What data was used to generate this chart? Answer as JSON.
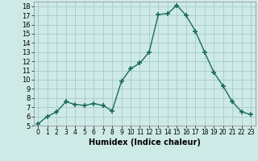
{
  "x": [
    0,
    1,
    2,
    3,
    4,
    5,
    6,
    7,
    8,
    9,
    10,
    11,
    12,
    13,
    14,
    15,
    16,
    17,
    18,
    19,
    20,
    21,
    22,
    23
  ],
  "y": [
    5.2,
    6.0,
    6.5,
    7.6,
    7.3,
    7.2,
    7.4,
    7.2,
    6.6,
    9.8,
    11.2,
    11.8,
    13.0,
    17.1,
    17.2,
    18.1,
    17.0,
    15.3,
    13.0,
    10.8,
    9.3,
    7.6,
    6.5,
    6.2
  ],
  "line_color": "#1a6b5e",
  "marker": "+",
  "marker_size": 4,
  "bg_color": "#ceeae7",
  "grid_color": "#aacfcc",
  "xlabel": "Humidex (Indice chaleur)",
  "ylim": [
    5,
    18.5
  ],
  "xlim": [
    -0.5,
    23.5
  ],
  "yticks": [
    5,
    6,
    7,
    8,
    9,
    10,
    11,
    12,
    13,
    14,
    15,
    16,
    17,
    18
  ],
  "xticks": [
    0,
    1,
    2,
    3,
    4,
    5,
    6,
    7,
    8,
    9,
    10,
    11,
    12,
    13,
    14,
    15,
    16,
    17,
    18,
    19,
    20,
    21,
    22,
    23
  ]
}
